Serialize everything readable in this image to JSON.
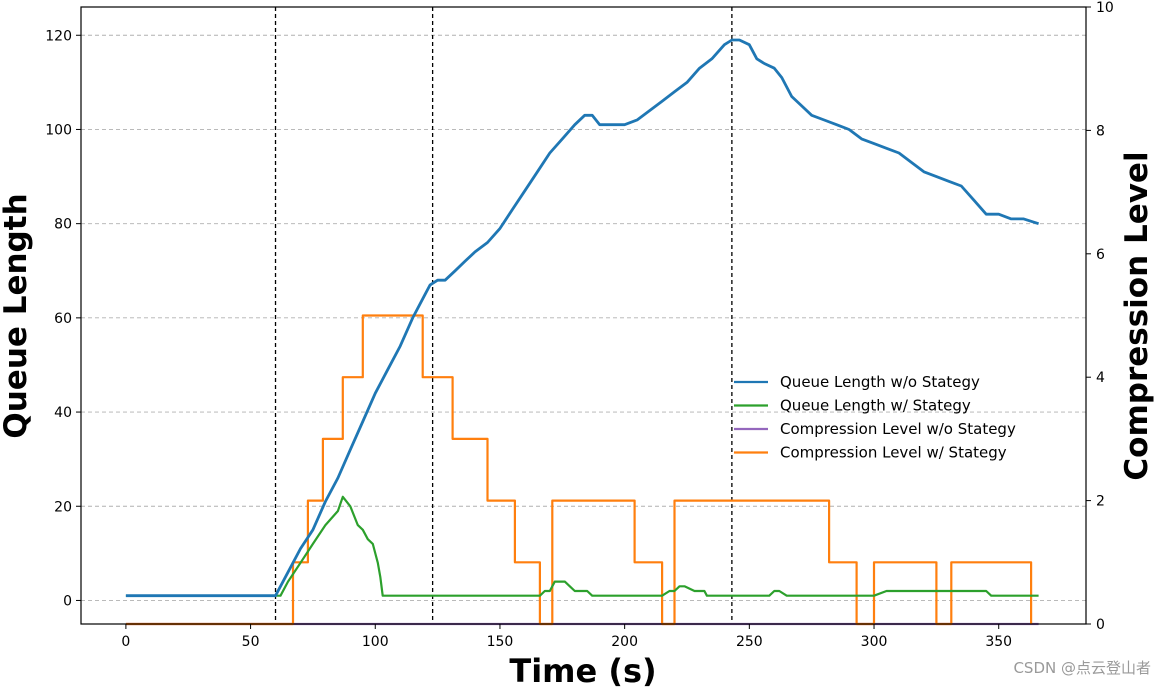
{
  "chart_data": {
    "type": "line",
    "title": "",
    "xlabel": "Time (s)",
    "ylabel_left": "Queue Length",
    "ylabel_right": "Compression Level",
    "xlim": [
      -18,
      385
    ],
    "ylim_left": [
      -5,
      126
    ],
    "ylim_right": [
      0,
      10
    ],
    "x_ticks": [
      0,
      50,
      100,
      150,
      200,
      250,
      300,
      350
    ],
    "y_ticks_left": [
      0,
      20,
      40,
      60,
      80,
      100,
      120
    ],
    "y_ticks_right": [
      0,
      2,
      4,
      6,
      8,
      10
    ],
    "grid": "horizontal dashed",
    "legend_position": "center-right",
    "vertical_markers": [
      60,
      123,
      243
    ],
    "series": [
      {
        "name": "Queue Length w/o Stategy",
        "axis": "left",
        "color": "#1f77b4",
        "x": [
          0,
          59,
          60,
          62,
          65,
          70,
          75,
          80,
          85,
          90,
          95,
          100,
          105,
          110,
          115,
          120,
          122,
          125,
          128,
          132,
          136,
          140,
          145,
          150,
          155,
          160,
          165,
          170,
          175,
          180,
          184,
          187,
          190,
          195,
          200,
          205,
          210,
          215,
          220,
          225,
          230,
          235,
          240,
          243,
          246,
          250,
          253,
          256,
          260,
          263,
          267,
          271,
          275,
          280,
          285,
          290,
          295,
          300,
          305,
          310,
          315,
          320,
          325,
          330,
          335,
          340,
          345,
          350,
          355,
          360,
          366
        ],
        "y": [
          1,
          1,
          1,
          3,
          6,
          11,
          15,
          21,
          26,
          32,
          38,
          44,
          49,
          54,
          60,
          65,
          67,
          68,
          68,
          70,
          72,
          74,
          76,
          79,
          83,
          87,
          91,
          95,
          98,
          101,
          103,
          103,
          101,
          101,
          101,
          102,
          104,
          106,
          108,
          110,
          113,
          115,
          118,
          119,
          119,
          118,
          115,
          114,
          113,
          111,
          107,
          105,
          103,
          102,
          101,
          100,
          98,
          97,
          96,
          95,
          93,
          91,
          90,
          89,
          88,
          85,
          82,
          82,
          81,
          81,
          80
        ]
      },
      {
        "name": "Queue Length w/ Stategy",
        "axis": "left",
        "color": "#2ca02c",
        "x": [
          0,
          59,
          62,
          65,
          70,
          75,
          80,
          85,
          87,
          90,
          93,
          95,
          97,
          99,
          100,
          101,
          102,
          103,
          110,
          160,
          166,
          168,
          170,
          172,
          176,
          178,
          180,
          185,
          187,
          210,
          215,
          218,
          220,
          222,
          224,
          228,
          232,
          233,
          240,
          243,
          246,
          252,
          258,
          260,
          262,
          265,
          278,
          283,
          300,
          305,
          330,
          332,
          345,
          347,
          366
        ],
        "y": [
          1,
          1,
          1,
          4,
          8,
          12,
          16,
          19,
          22,
          20,
          16,
          15,
          13,
          12,
          10,
          8,
          5,
          1,
          1,
          1,
          1,
          2,
          2,
          4,
          4,
          3,
          2,
          2,
          1,
          1,
          1,
          2,
          2,
          3,
          3,
          2,
          2,
          1,
          1,
          1,
          1,
          1,
          1,
          2,
          2,
          1,
          1,
          1,
          1,
          2,
          2,
          2,
          2,
          1,
          1
        ]
      },
      {
        "name": "Compression Level w/o Stategy",
        "axis": "right",
        "color": "#9467bd",
        "x": [
          0,
          366
        ],
        "y": [
          0,
          0
        ]
      },
      {
        "name": "Compression Level w/ Stategy",
        "axis": "right",
        "color": "#ff7f0e",
        "x": [
          0,
          67,
          67,
          73,
          73,
          79,
          79,
          87,
          87,
          95,
          95,
          119,
          119,
          131,
          131,
          145,
          145,
          156,
          156,
          166,
          166,
          171,
          171,
          204,
          204,
          215,
          215,
          220,
          220,
          282,
          282,
          293,
          293,
          300,
          300,
          325,
          325,
          331,
          331,
          363,
          363
        ],
        "y": [
          0,
          0,
          1,
          1,
          2,
          2,
          3,
          3,
          4,
          4,
          5,
          5,
          4,
          4,
          3,
          3,
          2,
          2,
          1,
          1,
          0,
          0,
          2,
          2,
          1,
          1,
          0,
          0,
          2,
          2,
          1,
          1,
          0,
          0,
          1,
          1,
          0,
          0,
          1,
          1,
          0
        ]
      }
    ]
  },
  "watermark": "CSDN @点云登山者"
}
